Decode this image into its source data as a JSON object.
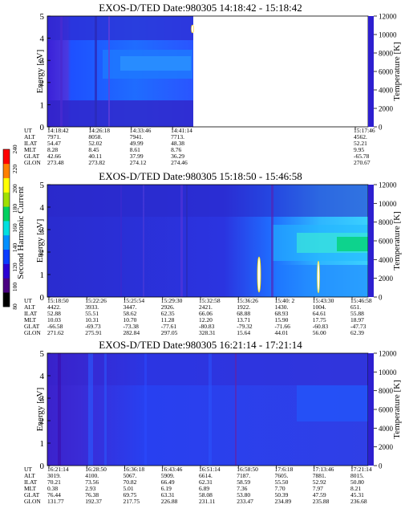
{
  "colorbar": {
    "label": "Second Harmonic Current",
    "ticks": [
      "80",
      "100",
      "120",
      "140",
      "160",
      "180",
      "200",
      "220",
      "240"
    ],
    "colors": [
      "#000000",
      "#4b0082",
      "#2a00d4",
      "#0a3cff",
      "#0090ff",
      "#00e0e0",
      "#00d060",
      "#a0e000",
      "#ffff00",
      "#ff8000",
      "#ff0000"
    ]
  },
  "row_labels": [
    "UT",
    "ALT",
    "ILAT",
    "MLT",
    "GLAT",
    "GLON"
  ],
  "chart_data": [
    {
      "type": "heatmap",
      "title": "EXOS-D/TED   Date:980305   14:18:42 - 15:18:42",
      "ylabel": "Energy [eV]",
      "y2label": "Temperature [K]",
      "ylim": [
        0,
        5
      ],
      "y2lim": [
        0,
        12000
      ],
      "yticks": [
        "0",
        "1",
        "2",
        "3",
        "4",
        "5"
      ],
      "y2ticks": [
        "0",
        "2000",
        "4000",
        "6000",
        "8000",
        "10000",
        "12000"
      ],
      "columns": [
        {
          "UT": "14:18:42",
          "ALT": "7971.",
          "ILAT": "54.47",
          "MLT": "8.28",
          "GLAT": "42.66",
          "GLON": "273.48"
        },
        {
          "UT": "14:26:18",
          "ALT": "8058.",
          "ILAT": "52.02",
          "MLT": "8.45",
          "GLAT": "40.11",
          "GLON": "273.82"
        },
        {
          "UT": "14:33:46",
          "ALT": "7941.",
          "ILAT": "49.99",
          "MLT": "8.61",
          "GLAT": "37.99",
          "GLON": "274.12"
        },
        {
          "UT": "14:41:14",
          "ALT": "7713.",
          "ILAT": "48.38",
          "MLT": "8.76",
          "GLAT": "36.29",
          "GLON": "274.46"
        },
        {
          "UT": "15:17:46",
          "ALT": "4562.",
          "ILAT": "52.21",
          "MLT": "9.95",
          "GLAT": "-65.78",
          "GLON": "270.67"
        }
      ],
      "data_coverage_fraction": 0.47
    },
    {
      "type": "heatmap",
      "title": "EXOS-D/TED   Date:980305   15:18:50 - 15:46:58",
      "ylabel": "Energy [eV]",
      "y2label": "Temperature [K]",
      "ylim": [
        0,
        5
      ],
      "y2lim": [
        0,
        12000
      ],
      "yticks": [
        "0",
        "1",
        "2",
        "3",
        "4",
        "5"
      ],
      "y2ticks": [
        "0",
        "2000",
        "4000",
        "6000",
        "8000",
        "10000",
        "12000"
      ],
      "columns": [
        {
          "UT": "15:18:50",
          "ALT": "4422.",
          "ILAT": "52.88",
          "MLT": "10.03",
          "GLAT": "-66.58",
          "GLON": "271.62"
        },
        {
          "UT": "15:22:26",
          "ALT": "3933.",
          "ILAT": "55.51",
          "MLT": "10.31",
          "GLAT": "-69.73",
          "GLON": "275.91"
        },
        {
          "UT": "15:25:54",
          "ALT": "3447.",
          "ILAT": "58.62",
          "MLT": "10.70",
          "GLAT": "-73.38",
          "GLON": "282.84"
        },
        {
          "UT": "15:29:30",
          "ALT": "2926.",
          "ILAT": "62.35",
          "MLT": "11.28",
          "GLAT": "-77.61",
          "GLON": "297.05"
        },
        {
          "UT": "15:32:58",
          "ALT": "2421.",
          "ILAT": "66.06",
          "MLT": "12.20",
          "GLAT": "-80.83",
          "GLON": "328.31"
        },
        {
          "UT": "15:36:26",
          "ALT": "1922.",
          "ILAT": "68.88",
          "MLT": "13.71",
          "GLAT": "-79.32",
          "GLON": "15.64"
        },
        {
          "UT": "15:40: 2",
          "ALT": "1430.",
          "ILAT": "68.93",
          "MLT": "15.90",
          "GLAT": "-71.66",
          "GLON": "44.01"
        },
        {
          "UT": "15:43:30",
          "ALT": "1004.",
          "ILAT": "64.61",
          "MLT": "17.75",
          "GLAT": "-60.83",
          "GLON": "56.00"
        },
        {
          "UT": "15:46:58",
          "ALT": "651.",
          "ILAT": "55.88",
          "MLT": "18.97",
          "GLAT": "-47.73",
          "GLON": "62.39"
        }
      ]
    },
    {
      "type": "heatmap",
      "title": "EXOS-D/TED   Date:980305   16:21:14 - 17:21:14",
      "ylabel": "Energy [eV]",
      "y2label": "Temperature [K]",
      "ylim": [
        0,
        5
      ],
      "y2lim": [
        0,
        12000
      ],
      "yticks": [
        "0",
        "1",
        "2",
        "3",
        "4",
        "5"
      ],
      "y2ticks": [
        "0",
        "2000",
        "4000",
        "6000",
        "8000",
        "10000",
        "12000"
      ],
      "columns": [
        {
          "UT": "16:21:14",
          "ALT": "3019.",
          "ILAT": "70.21",
          "MLT": "0.38",
          "GLAT": "76.44",
          "GLON": "131.77"
        },
        {
          "UT": "16:28:50",
          "ALT": "4100.",
          "ILAT": "73.56",
          "MLT": "2.93",
          "GLAT": "76.38",
          "GLON": "192.37"
        },
        {
          "UT": "16:36:18",
          "ALT": "5067.",
          "ILAT": "70.82",
          "MLT": "5.01",
          "GLAT": "69.75",
          "GLON": "217.75"
        },
        {
          "UT": "16:43:46",
          "ALT": "5909.",
          "ILAT": "66.49",
          "MLT": "6.19",
          "GLAT": "63.31",
          "GLON": "226.88"
        },
        {
          "UT": "16:51:14",
          "ALT": "6614.",
          "ILAT": "62.31",
          "MLT": "6.89",
          "GLAT": "58.08",
          "GLON": "231.11"
        },
        {
          "UT": "16:58:50",
          "ALT": "7187.",
          "ILAT": "58.59",
          "MLT": "7.36",
          "GLAT": "53.80",
          "GLON": "233.47"
        },
        {
          "UT": "17:6:18",
          "ALT": "7605.",
          "ILAT": "55.50",
          "MLT": "7.70",
          "GLAT": "50.39",
          "GLON": "234.89"
        },
        {
          "UT": "17:13:46",
          "ALT": "7881.",
          "ILAT": "52.92",
          "MLT": "7.97",
          "GLAT": "47.59",
          "GLON": "235.88"
        },
        {
          "UT": "17:21:14",
          "ALT": "8015.",
          "ILAT": "50.80",
          "MLT": "8.21",
          "GLAT": "45.31",
          "GLON": "236.68"
        }
      ]
    }
  ]
}
